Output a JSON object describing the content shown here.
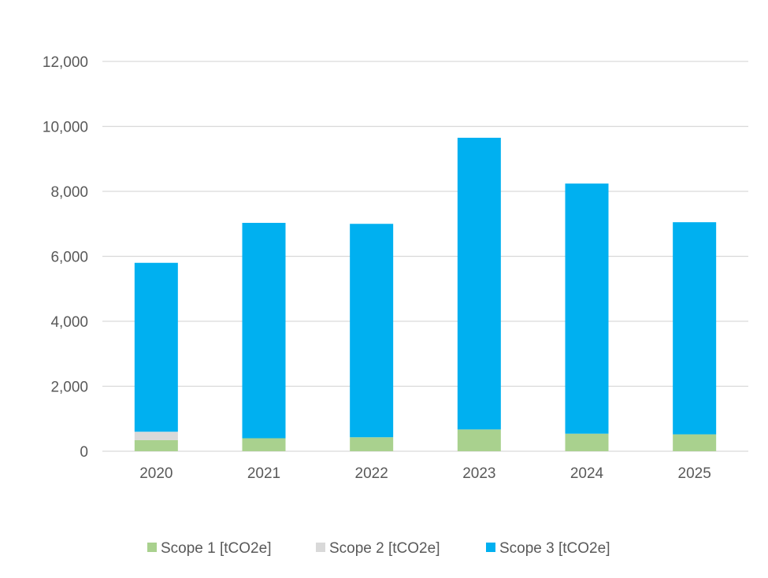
{
  "chart_data": {
    "type": "bar",
    "stacked": true,
    "title": "",
    "xlabel": "",
    "ylabel": "",
    "categories": [
      "2020",
      "2021",
      "2022",
      "2023",
      "2024",
      "2025"
    ],
    "series": [
      {
        "name": "Scope 1 [tCO2e]",
        "color": "#a9d18e",
        "values": [
          340,
          400,
          430,
          670,
          540,
          520
        ]
      },
      {
        "name": "Scope 2 [tCO2e]",
        "color": "#d9d9d9",
        "values": [
          260,
          0,
          0,
          0,
          0,
          0
        ]
      },
      {
        "name": "Scope 3 [tCO2e]",
        "color": "#00b0f0",
        "values": [
          5200,
          6630,
          6570,
          8980,
          7700,
          6530
        ]
      }
    ],
    "ylim": [
      0,
      12000
    ],
    "yticks": [
      0,
      2000,
      4000,
      6000,
      8000,
      10000,
      12000
    ],
    "ytick_labels": [
      "0",
      "2,000",
      "4,000",
      "6,000",
      "8,000",
      "10,000",
      "12,000"
    ],
    "grid": true,
    "gridline_color": "#d9d9d9",
    "legend_position": "bottom"
  }
}
